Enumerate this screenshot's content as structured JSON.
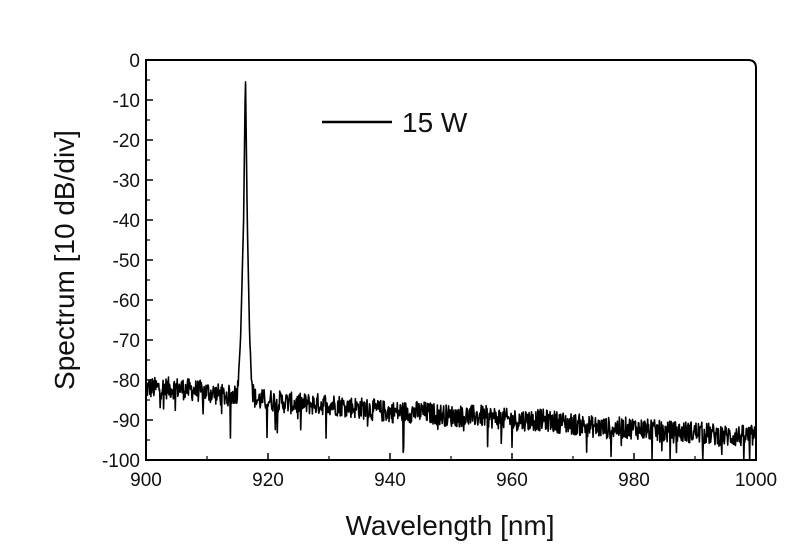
{
  "chart_data": {
    "type": "line",
    "xlabel": "Wavelength [nm]",
    "ylabel": "Spectrum [10 dB/div]",
    "xlim": [
      900,
      1000
    ],
    "ylim": [
      -100,
      0
    ],
    "x_ticks": [
      900,
      920,
      940,
      960,
      980,
      1000
    ],
    "y_ticks": [
      0,
      -10,
      -20,
      -30,
      -40,
      -50,
      -60,
      -70,
      -80,
      -90,
      -100
    ],
    "grid": false,
    "legend_position": "top-center",
    "series": [
      {
        "name": "15 W",
        "color": "#000000",
        "x": [
          900,
          905,
          910,
          913,
          914,
          915,
          915.5,
          916,
          916.3,
          916.6,
          917,
          917.5,
          918,
          920,
          925,
          930,
          935,
          940,
          945,
          950,
          955,
          960,
          965,
          970,
          975,
          980,
          985,
          990,
          995,
          1000
        ],
        "values": [
          -82,
          -82,
          -83,
          -84,
          -84,
          -83,
          -70,
          -40,
          -3,
          -40,
          -70,
          -83,
          -85,
          -85,
          -86,
          -86,
          -87,
          -88,
          -88,
          -89,
          -89,
          -90,
          -90,
          -91,
          -92,
          -92,
          -93,
          -93,
          -94,
          -94
        ]
      }
    ]
  }
}
